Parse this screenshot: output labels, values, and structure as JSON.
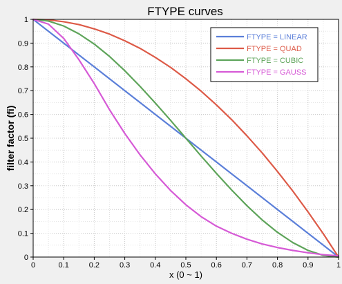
{
  "chart_data": {
    "type": "line",
    "title": "FTYPE curves",
    "xlabel": "x (0 ~ 1)",
    "ylabel": "filter factor (fi)",
    "xlim": [
      0,
      1
    ],
    "ylim": [
      0,
      1
    ],
    "xticks": [
      "0",
      "0.1",
      "0.2",
      "0.3",
      "0.4",
      "0.5",
      "0.6",
      "0.7",
      "0.8",
      "0.9",
      "1"
    ],
    "yticks": [
      "0",
      "0.1",
      "0.2",
      "0.3",
      "0.4",
      "0.5",
      "0.6",
      "0.7",
      "0.8",
      "0.9",
      "1"
    ],
    "grid": true,
    "legend_position": "top-right",
    "x": [
      0,
      0.05,
      0.1,
      0.15,
      0.2,
      0.25,
      0.3,
      0.35,
      0.4,
      0.45,
      0.5,
      0.55,
      0.6,
      0.65,
      0.7,
      0.75,
      0.8,
      0.85,
      0.9,
      0.95,
      1
    ],
    "series": [
      {
        "name": "FTYPE = LINEAR",
        "color": "#5b7fd9",
        "values": [
          1,
          0.95,
          0.9,
          0.85,
          0.8,
          0.75,
          0.7,
          0.65,
          0.6,
          0.55,
          0.5,
          0.45,
          0.4,
          0.35,
          0.3,
          0.25,
          0.2,
          0.15,
          0.1,
          0.05,
          0
        ]
      },
      {
        "name": "FTYPE = QUAD",
        "color": "#dd5a47",
        "values": [
          1,
          0.998,
          0.99,
          0.978,
          0.96,
          0.938,
          0.91,
          0.878,
          0.84,
          0.798,
          0.75,
          0.698,
          0.64,
          0.578,
          0.51,
          0.438,
          0.36,
          0.278,
          0.19,
          0.098,
          0
        ]
      },
      {
        "name": "FTYPE = CUBIC",
        "color": "#5ea45a",
        "values": [
          1,
          0.993,
          0.972,
          0.939,
          0.896,
          0.844,
          0.784,
          0.718,
          0.648,
          0.575,
          0.5,
          0.425,
          0.352,
          0.282,
          0.216,
          0.156,
          0.104,
          0.061,
          0.028,
          0.007,
          0
        ]
      },
      {
        "name": "FTYPE = GAUSS",
        "color": "#d65ad6",
        "values": [
          1,
          0.98,
          0.92,
          0.83,
          0.73,
          0.62,
          0.52,
          0.43,
          0.35,
          0.28,
          0.22,
          0.17,
          0.13,
          0.1,
          0.075,
          0.055,
          0.04,
          0.028,
          0.018,
          0.01,
          0.005
        ]
      }
    ]
  }
}
